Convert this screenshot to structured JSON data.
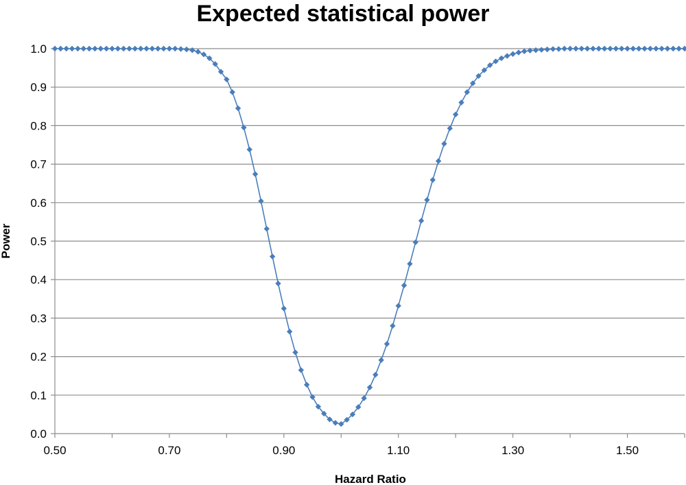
{
  "chart_data": {
    "type": "scatter",
    "title": "Expected statistical power",
    "xlabel": "Hazard Ratio",
    "ylabel": "Power",
    "xlim": [
      0.5,
      1.6
    ],
    "ylim": [
      0.0,
      1.0
    ],
    "x_ticks": [
      "0.50",
      "0.70",
      "0.90",
      "1.10",
      "1.30",
      "1.50"
    ],
    "y_ticks": [
      "0.0",
      "0.1",
      "0.2",
      "0.3",
      "0.4",
      "0.5",
      "0.6",
      "0.7",
      "0.8",
      "0.9",
      "1.0"
    ],
    "grid": "horizontal",
    "legend": "none",
    "series_color": "#4a7ebb",
    "x": [
      0.5,
      0.51,
      0.52,
      0.53,
      0.54,
      0.55,
      0.56,
      0.57,
      0.58,
      0.59,
      0.6,
      0.61,
      0.62,
      0.63,
      0.64,
      0.65,
      0.66,
      0.67,
      0.68,
      0.69,
      0.7,
      0.71,
      0.72,
      0.73,
      0.74,
      0.75,
      0.76,
      0.77,
      0.78,
      0.79,
      0.8,
      0.81,
      0.82,
      0.83,
      0.84,
      0.85,
      0.86,
      0.87,
      0.88,
      0.89,
      0.9,
      0.91,
      0.92,
      0.93,
      0.94,
      0.95,
      0.96,
      0.97,
      0.98,
      0.99,
      1.0,
      1.01,
      1.02,
      1.03,
      1.04,
      1.05,
      1.06,
      1.07,
      1.08,
      1.09,
      1.1,
      1.11,
      1.12,
      1.13,
      1.14,
      1.15,
      1.16,
      1.17,
      1.18,
      1.19,
      1.2,
      1.21,
      1.22,
      1.23,
      1.24,
      1.25,
      1.26,
      1.27,
      1.28,
      1.29,
      1.3,
      1.31,
      1.32,
      1.33,
      1.34,
      1.35,
      1.36,
      1.37,
      1.38,
      1.39,
      1.4,
      1.41,
      1.42,
      1.43,
      1.44,
      1.45,
      1.46,
      1.47,
      1.48,
      1.49,
      1.5,
      1.51,
      1.52,
      1.53,
      1.54,
      1.55,
      1.56,
      1.57,
      1.58,
      1.59,
      1.6
    ],
    "y": [
      1.0,
      1.0,
      1.0,
      1.0,
      1.0,
      1.0,
      1.0,
      1.0,
      1.0,
      1.0,
      1.0,
      1.0,
      1.0,
      1.0,
      1.0,
      1.0,
      1.0,
      1.0,
      1.0,
      1.0,
      1.0,
      1.0,
      0.999,
      0.998,
      0.996,
      0.992,
      0.985,
      0.975,
      0.96,
      0.94,
      0.92,
      0.887,
      0.845,
      0.795,
      0.738,
      0.674,
      0.604,
      0.532,
      0.46,
      0.39,
      0.325,
      0.265,
      0.211,
      0.165,
      0.127,
      0.095,
      0.07,
      0.052,
      0.037,
      0.028,
      0.025,
      0.036,
      0.05,
      0.069,
      0.092,
      0.12,
      0.153,
      0.191,
      0.233,
      0.28,
      0.332,
      0.385,
      0.441,
      0.497,
      0.553,
      0.607,
      0.659,
      0.708,
      0.753,
      0.793,
      0.829,
      0.86,
      0.887,
      0.91,
      0.929,
      0.944,
      0.957,
      0.967,
      0.975,
      0.981,
      0.986,
      0.99,
      0.993,
      0.995,
      0.996,
      0.997,
      0.998,
      0.999,
      0.999,
      1.0,
      1.0,
      1.0,
      1.0,
      1.0,
      1.0,
      1.0,
      1.0,
      1.0,
      1.0,
      1.0,
      1.0,
      1.0,
      1.0,
      1.0,
      1.0,
      1.0,
      1.0,
      1.0,
      1.0,
      1.0,
      1.0
    ]
  }
}
